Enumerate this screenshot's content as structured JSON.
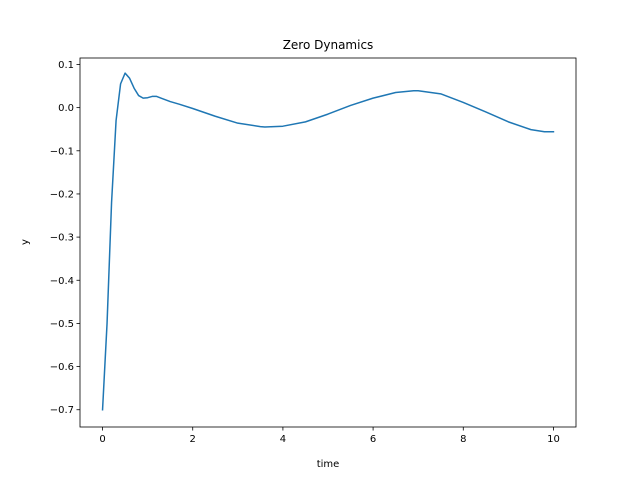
{
  "chart_data": {
    "type": "line",
    "title": "Zero Dynamics",
    "xlabel": "time",
    "ylabel": "y",
    "xlim": [
      -0.5,
      10.5
    ],
    "ylim": [
      -0.74,
      0.115
    ],
    "xticks": [
      0,
      2,
      4,
      6,
      8,
      10
    ],
    "yticks": [
      0.1,
      0.0,
      -0.1,
      -0.2,
      -0.3,
      -0.4,
      -0.5,
      -0.6,
      -0.7
    ],
    "xtick_labels": [
      "0",
      "2",
      "4",
      "6",
      "8",
      "10"
    ],
    "ytick_labels": [
      "0.1",
      "0.0",
      "−0.1",
      "−0.2",
      "−0.3",
      "−0.4",
      "−0.5",
      "−0.6",
      "−0.7"
    ],
    "grid": false,
    "series": [
      {
        "color": "#1f77b4",
        "x": [
          0.0,
          0.1,
          0.2,
          0.3,
          0.4,
          0.5,
          0.6,
          0.7,
          0.8,
          0.9,
          1.0,
          1.1,
          1.2,
          1.3,
          1.5,
          1.7,
          2.0,
          2.5,
          3.0,
          3.5,
          3.6,
          4.0,
          4.5,
          5.0,
          5.5,
          6.0,
          6.5,
          6.9,
          7.0,
          7.5,
          8.0,
          8.5,
          9.0,
          9.5,
          9.8,
          10.0
        ],
        "y": [
          -0.7,
          -0.5,
          -0.22,
          -0.03,
          0.055,
          0.08,
          0.068,
          0.045,
          0.028,
          0.022,
          0.023,
          0.026,
          0.026,
          0.022,
          0.014,
          0.008,
          -0.002,
          -0.02,
          -0.036,
          -0.044,
          -0.045,
          -0.043,
          -0.033,
          -0.015,
          0.005,
          0.022,
          0.035,
          0.039,
          0.039,
          0.032,
          0.012,
          -0.01,
          -0.033,
          -0.051,
          -0.056,
          -0.056
        ]
      }
    ]
  }
}
